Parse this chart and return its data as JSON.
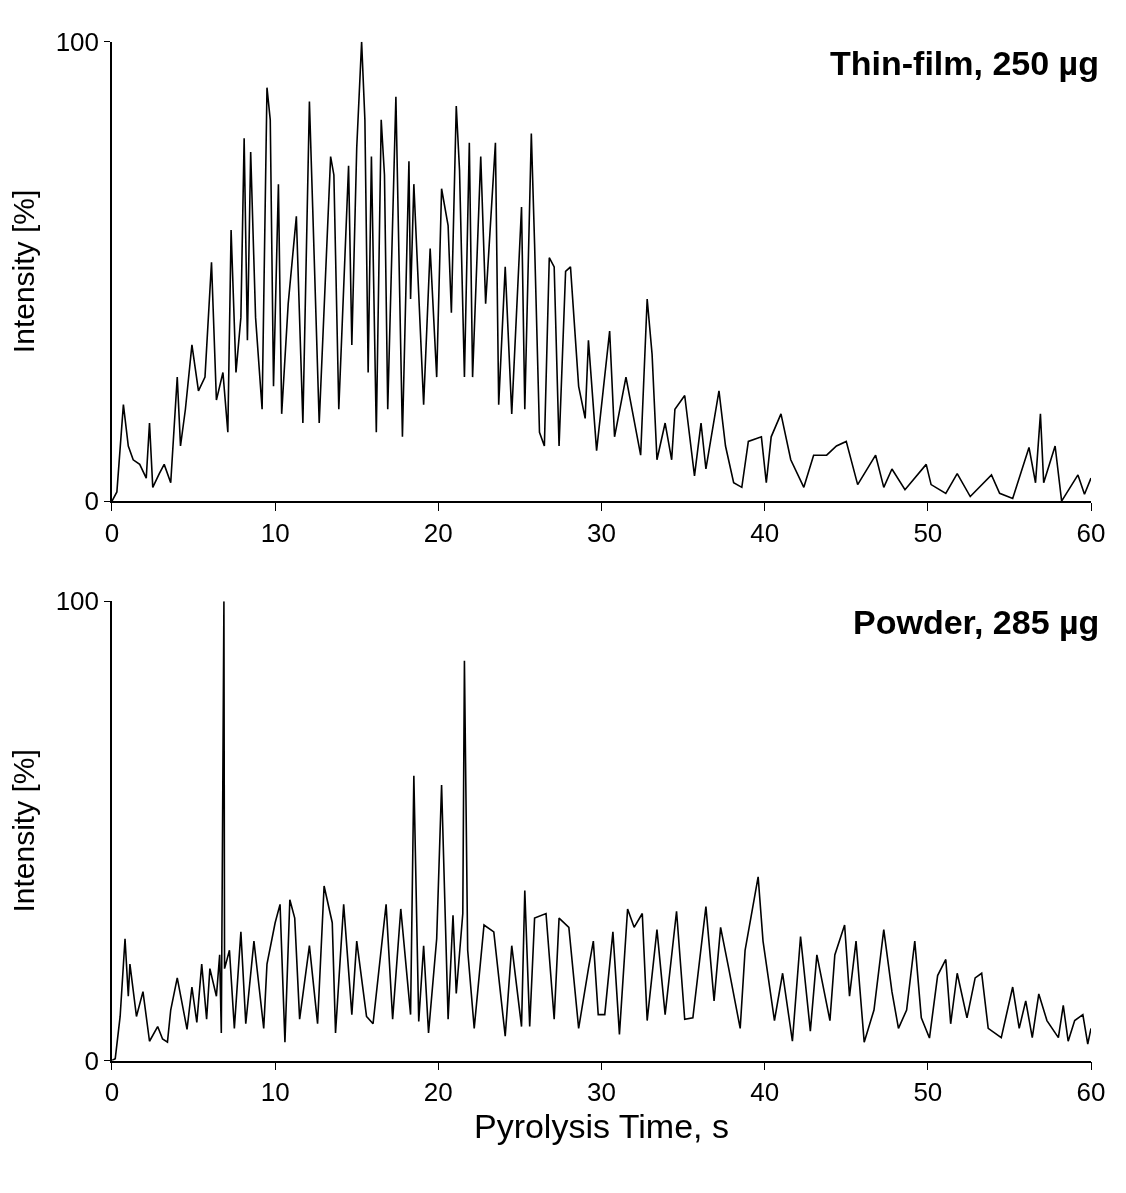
{
  "chart_data": [
    {
      "type": "line",
      "title": "Thin-film, 250 µg",
      "ylabel": "Intensity [%]",
      "xlim": [
        0,
        60
      ],
      "xticks": [
        0,
        10,
        20,
        30,
        40,
        50,
        60
      ],
      "ylim": [
        0,
        100
      ],
      "yticks": [
        0,
        100
      ],
      "marker": "none",
      "line_style": "solid",
      "series": [
        {
          "color": "#000000",
          "x": [
            0,
            0.3,
            0.7,
            1.0,
            1.3,
            1.7,
            2.1,
            2.3,
            2.5,
            2.9,
            3.2,
            3.6,
            4.0,
            4.2,
            4.5,
            4.9,
            5.3,
            5.7,
            6.1,
            6.4,
            6.8,
            7.1,
            7.3,
            7.6,
            7.9,
            8.1,
            8.3,
            8.5,
            8.8,
            9.2,
            9.5,
            9.7,
            9.9,
            10.2,
            10.4,
            10.8,
            11.3,
            11.7,
            12.1,
            12.3,
            12.7,
            13.4,
            13.6,
            13.9,
            14.5,
            14.7,
            15.0,
            15.3,
            15.5,
            15.7,
            15.9,
            16.2,
            16.5,
            16.7,
            16.9,
            17.4,
            17.8,
            18.2,
            18.3,
            18.5,
            19.1,
            19.5,
            19.9,
            20.2,
            20.6,
            20.8,
            21.1,
            21.3,
            21.6,
            21.9,
            22.1,
            22.6,
            22.9,
            23.5,
            23.7,
            24.1,
            24.5,
            25.1,
            25.3,
            25.7,
            25.9,
            26.2,
            26.5,
            26.8,
            27.1,
            27.4,
            27.8,
            28.1,
            28.6,
            29.0,
            29.2,
            29.7,
            30.1,
            30.5,
            30.8,
            31.5,
            32.4,
            32.8,
            33.1,
            33.4,
            33.9,
            34.3,
            34.5,
            35.1,
            35.7,
            36.1,
            36.4,
            37.2,
            37.6,
            38.1,
            38.6,
            39.0,
            39.8,
            40.1,
            40.4,
            41.0,
            41.6,
            42.4,
            43.0,
            43.8,
            44.4,
            45.0,
            45.7,
            46.8,
            47.3,
            47.8,
            48.6,
            49.9,
            50.2,
            51.1,
            51.8,
            52.6,
            53.9,
            54.4,
            55.2,
            56.2,
            56.6,
            56.9,
            57.1,
            57.8,
            58.2,
            59.2,
            59.6,
            60
          ],
          "values": [
            0,
            2,
            21,
            12,
            9,
            8,
            5,
            17,
            3,
            6,
            8,
            4,
            27,
            12,
            20,
            34,
            24,
            27,
            52,
            22,
            28,
            15,
            59,
            28,
            40,
            79,
            35,
            76,
            40,
            20,
            90,
            83,
            25,
            69,
            19,
            43,
            62,
            17,
            87,
            64,
            17,
            75,
            71,
            20,
            73,
            34,
            77,
            100,
            83,
            28,
            75,
            15,
            83,
            71,
            20,
            88,
            14,
            74,
            44,
            69,
            21,
            55,
            27,
            68,
            60,
            41,
            86,
            72,
            27,
            78,
            27,
            75,
            43,
            78,
            21,
            51,
            19,
            64,
            20,
            80,
            56,
            15,
            12,
            53,
            51,
            12,
            50,
            51,
            25,
            18,
            35,
            11,
            24,
            37,
            14,
            27,
            10,
            44,
            32,
            9,
            17,
            9,
            20,
            23,
            5.5,
            17,
            7,
            24,
            12,
            4,
            3,
            13,
            14,
            4,
            14,
            19,
            9,
            3,
            10,
            10,
            12,
            13,
            3.6,
            10,
            3,
            7,
            2.5,
            8,
            3.6,
            1.7,
            6,
            1,
            5.7,
            1.7,
            0.6,
            11.7,
            4,
            19,
            4,
            12,
            0,
            5.7,
            1.5,
            5
          ]
        }
      ]
    },
    {
      "type": "line",
      "title": "Powder, 285 µg",
      "xlabel": "Pyrolysis Time, s",
      "ylabel": "Intensity [%]",
      "xlim": [
        0,
        60
      ],
      "xticks": [
        0,
        10,
        20,
        30,
        40,
        50,
        60
      ],
      "ylim": [
        0,
        100
      ],
      "yticks": [
        0,
        100
      ],
      "marker": "none",
      "line_style": "solid",
      "series": [
        {
          "color": "#000000",
          "x": [
            0,
            0.2,
            0.5,
            0.8,
            1.0,
            1.1,
            1.5,
            1.9,
            2.3,
            2.8,
            3.1,
            3.4,
            3.6,
            4.0,
            4.6,
            4.9,
            5.2,
            5.5,
            5.8,
            6.0,
            6.4,
            6.6,
            6.7,
            6.86,
            6.9,
            7.2,
            7.5,
            7.9,
            8.2,
            8.7,
            9.3,
            9.5,
            10.0,
            10.3,
            10.6,
            10.9,
            11.2,
            11.5,
            12.1,
            12.6,
            13.0,
            13.5,
            13.7,
            14.2,
            14.7,
            15.0,
            15.6,
            16.0,
            16.8,
            17.2,
            17.7,
            18.3,
            18.5,
            18.8,
            19.1,
            19.4,
            19.9,
            20.2,
            20.6,
            20.9,
            21.1,
            21.5,
            21.6,
            21.8,
            22.2,
            22.8,
            23.4,
            24.1,
            24.5,
            25.1,
            25.3,
            25.6,
            25.9,
            26.6,
            27.1,
            27.4,
            28.0,
            28.6,
            29.2,
            29.5,
            29.8,
            30.2,
            30.7,
            31.1,
            31.6,
            32.0,
            32.5,
            32.8,
            33.4,
            33.9,
            34.6,
            35.1,
            35.6,
            36.4,
            36.9,
            37.3,
            37.8,
            38.5,
            38.8,
            39.6,
            39.9,
            40.6,
            41.1,
            41.7,
            42.2,
            42.8,
            43.2,
            44.0,
            44.3,
            44.9,
            45.2,
            45.6,
            46.1,
            46.7,
            47.3,
            47.8,
            48.2,
            48.7,
            49.2,
            49.6,
            50.1,
            50.6,
            51.1,
            51.4,
            51.8,
            52.4,
            52.9,
            53.3,
            53.7,
            54.5,
            55.2,
            55.6,
            56.0,
            56.4,
            56.8,
            57.3,
            58.0,
            58.3,
            58.6,
            59.0,
            59.5,
            59.8,
            60
          ],
          "values": [
            0,
            0.4,
            9.6,
            26.5,
            14,
            21,
            9.6,
            15,
            4.2,
            7.4,
            4.7,
            4,
            11,
            18,
            6.8,
            16,
            8.3,
            21,
            9,
            20,
            14,
            23,
            6,
            100,
            20,
            24,
            7,
            28,
            8,
            26,
            7,
            21,
            30,
            34,
            4,
            35,
            31,
            9,
            25,
            8,
            38,
            30,
            6,
            34,
            10,
            26,
            9.6,
            8,
            34,
            9,
            33,
            10,
            62,
            8.5,
            25,
            6,
            26.5,
            60,
            9,
            31.6,
            14.6,
            32,
            87,
            24,
            7,
            29.5,
            28,
            5.3,
            25,
            7.4,
            37,
            7.4,
            31,
            32,
            9,
            31,
            29,
            7,
            20,
            26,
            10,
            10,
            28,
            5.7,
            33,
            29,
            32,
            8.7,
            28.5,
            10,
            32.5,
            9,
            9.3,
            33.5,
            13,
            29,
            20,
            7,
            24,
            40,
            26,
            8.7,
            19,
            4.2,
            27,
            6.4,
            23,
            8.7,
            23,
            29.5,
            14,
            26,
            4,
            11,
            28.5,
            15,
            7,
            11,
            26,
            9.3,
            4.9,
            18.5,
            22,
            8,
            19,
            9.3,
            18,
            19,
            7,
            5,
            16,
            7,
            13,
            5,
            14.5,
            8.7,
            5,
            12,
            4.2,
            8.7,
            10,
            3.6,
            7
          ]
        }
      ]
    }
  ]
}
